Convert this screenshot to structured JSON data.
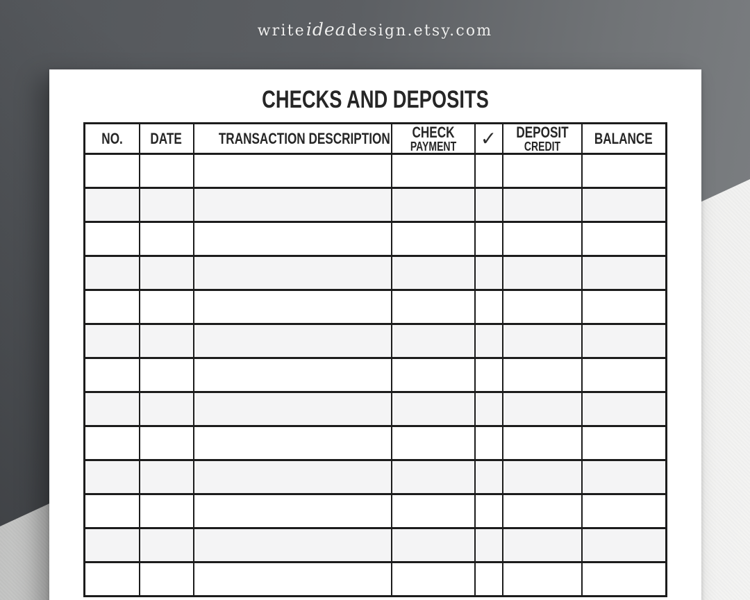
{
  "watermark": {
    "prefix": "write",
    "accent": "idea",
    "suffix": "design.etsy.com"
  },
  "page": {
    "title": "CHECKS AND DEPOSITS",
    "table": {
      "columns": [
        {
          "id": "no",
          "label": "NO."
        },
        {
          "id": "date",
          "label": "DATE"
        },
        {
          "id": "description",
          "label": "TRANSACTION DESCRIPTION"
        },
        {
          "id": "check-payment",
          "label": "CHECK",
          "sublabel": "PAYMENT"
        },
        {
          "id": "checkmark",
          "label": "✓"
        },
        {
          "id": "deposit-credit",
          "label": "DEPOSIT",
          "sublabel": "CREDIT"
        },
        {
          "id": "balance",
          "label": "BALANCE"
        }
      ],
      "body_rows": 13,
      "empty_cell": ""
    }
  },
  "colors": {
    "table_border": "#1c1c1c",
    "row_alternate": "#f4f4f5",
    "paper": "#ffffff",
    "ink": "#262626",
    "backdrop_dark": "#3c3f43",
    "backdrop_light": "#7e8184",
    "surface_left": "#bcbdbc",
    "surface_right": "#f4f4f3",
    "watermark_text": "#f6f6f4"
  }
}
